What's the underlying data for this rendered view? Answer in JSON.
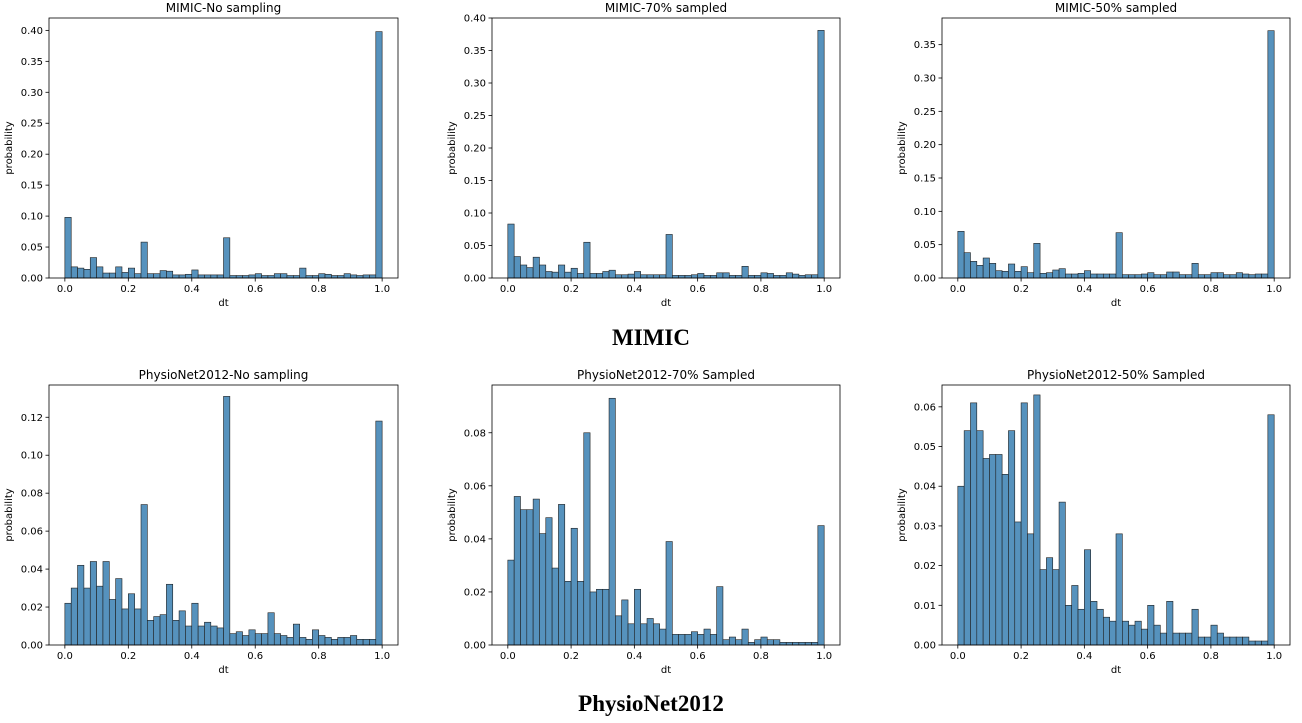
{
  "figure": {
    "section_labels": [
      "MIMIC",
      "PhysioNet2012"
    ]
  },
  "colors": {
    "bar_fill": "#5692bd",
    "bar_edge": "#1f1f1f"
  },
  "chart_data": [
    {
      "type": "bar",
      "title": "MIMIC-No sampling",
      "xlabel": "dt",
      "ylabel": "probability",
      "xlim": [
        -0.05,
        1.05
      ],
      "ylim": [
        0,
        0.42
      ],
      "xticks": [
        0.0,
        0.2,
        0.4,
        0.6,
        0.8,
        1.0
      ],
      "xtick_labels": [
        "0.0",
        "0.2",
        "0.4",
        "0.6",
        "0.8",
        "1.0"
      ],
      "yticks": [
        0.0,
        0.05,
        0.1,
        0.15,
        0.2,
        0.25,
        0.3,
        0.35,
        0.4
      ],
      "ytick_labels": [
        "0.00",
        "0.05",
        "0.10",
        "0.15",
        "0.20",
        "0.25",
        "0.30",
        "0.35",
        "0.40"
      ],
      "bin_width": 0.02,
      "values": [
        0.098,
        0.018,
        0.016,
        0.014,
        0.033,
        0.018,
        0.008,
        0.008,
        0.018,
        0.009,
        0.016,
        0.007,
        0.058,
        0.007,
        0.007,
        0.012,
        0.011,
        0.005,
        0.005,
        0.006,
        0.013,
        0.005,
        0.005,
        0.005,
        0.005,
        0.065,
        0.004,
        0.004,
        0.004,
        0.005,
        0.007,
        0.004,
        0.004,
        0.007,
        0.007,
        0.004,
        0.004,
        0.016,
        0.004,
        0.004,
        0.007,
        0.006,
        0.004,
        0.004,
        0.007,
        0.005,
        0.004,
        0.005,
        0.005,
        0.398
      ]
    },
    {
      "type": "bar",
      "title": "MIMIC-70% sampled",
      "xlabel": "dt",
      "ylabel": "probability",
      "xlim": [
        -0.05,
        1.05
      ],
      "ylim": [
        0,
        0.4
      ],
      "xticks": [
        0.0,
        0.2,
        0.4,
        0.6,
        0.8,
        1.0
      ],
      "xtick_labels": [
        "0.0",
        "0.2",
        "0.4",
        "0.6",
        "0.8",
        "1.0"
      ],
      "yticks": [
        0.0,
        0.05,
        0.1,
        0.15,
        0.2,
        0.25,
        0.3,
        0.35,
        0.4
      ],
      "ytick_labels": [
        "0.00",
        "0.05",
        "0.10",
        "0.15",
        "0.20",
        "0.25",
        "0.30",
        "0.35",
        "0.40"
      ],
      "bin_width": 0.02,
      "values": [
        0.083,
        0.033,
        0.02,
        0.016,
        0.032,
        0.02,
        0.01,
        0.009,
        0.02,
        0.009,
        0.015,
        0.007,
        0.055,
        0.007,
        0.007,
        0.01,
        0.012,
        0.005,
        0.005,
        0.006,
        0.01,
        0.005,
        0.005,
        0.005,
        0.005,
        0.067,
        0.004,
        0.004,
        0.004,
        0.005,
        0.007,
        0.004,
        0.004,
        0.008,
        0.008,
        0.004,
        0.004,
        0.018,
        0.004,
        0.004,
        0.008,
        0.007,
        0.004,
        0.004,
        0.008,
        0.006,
        0.004,
        0.005,
        0.005,
        0.381
      ]
    },
    {
      "type": "bar",
      "title": "MIMIC-50% sampled",
      "xlabel": "dt",
      "ylabel": "probability",
      "xlim": [
        -0.05,
        1.05
      ],
      "ylim": [
        0,
        0.39
      ],
      "xticks": [
        0.0,
        0.2,
        0.4,
        0.6,
        0.8,
        1.0
      ],
      "xtick_labels": [
        "0.0",
        "0.2",
        "0.4",
        "0.6",
        "0.8",
        "1.0"
      ],
      "yticks": [
        0.0,
        0.05,
        0.1,
        0.15,
        0.2,
        0.25,
        0.3,
        0.35
      ],
      "ytick_labels": [
        "0.00",
        "0.05",
        "0.10",
        "0.15",
        "0.20",
        "0.25",
        "0.30",
        "0.35"
      ],
      "bin_width": 0.02,
      "values": [
        0.07,
        0.038,
        0.025,
        0.019,
        0.03,
        0.022,
        0.011,
        0.01,
        0.021,
        0.01,
        0.017,
        0.008,
        0.052,
        0.007,
        0.008,
        0.012,
        0.014,
        0.006,
        0.006,
        0.007,
        0.011,
        0.006,
        0.006,
        0.006,
        0.006,
        0.068,
        0.005,
        0.005,
        0.005,
        0.006,
        0.008,
        0.005,
        0.005,
        0.009,
        0.009,
        0.005,
        0.005,
        0.022,
        0.005,
        0.005,
        0.008,
        0.008,
        0.005,
        0.005,
        0.008,
        0.006,
        0.005,
        0.006,
        0.006,
        0.371
      ]
    },
    {
      "type": "bar",
      "title": "PhysioNet2012-No sampling",
      "xlabel": "dt",
      "ylabel": "probability",
      "xlim": [
        -0.05,
        1.05
      ],
      "ylim": [
        0,
        0.137
      ],
      "xticks": [
        0.0,
        0.2,
        0.4,
        0.6,
        0.8,
        1.0
      ],
      "xtick_labels": [
        "0.0",
        "0.2",
        "0.4",
        "0.6",
        "0.8",
        "1.0"
      ],
      "yticks": [
        0.0,
        0.02,
        0.04,
        0.06,
        0.08,
        0.1,
        0.12
      ],
      "ytick_labels": [
        "0.00",
        "0.02",
        "0.04",
        "0.06",
        "0.08",
        "0.10",
        "0.12"
      ],
      "bin_width": 0.02,
      "values": [
        0.022,
        0.03,
        0.042,
        0.03,
        0.044,
        0.031,
        0.044,
        0.024,
        0.035,
        0.019,
        0.027,
        0.019,
        0.074,
        0.013,
        0.015,
        0.016,
        0.032,
        0.013,
        0.018,
        0.01,
        0.022,
        0.01,
        0.012,
        0.01,
        0.009,
        0.131,
        0.006,
        0.007,
        0.005,
        0.008,
        0.006,
        0.006,
        0.017,
        0.006,
        0.005,
        0.004,
        0.011,
        0.004,
        0.003,
        0.008,
        0.005,
        0.004,
        0.003,
        0.004,
        0.004,
        0.005,
        0.003,
        0.003,
        0.003,
        0.118
      ]
    },
    {
      "type": "bar",
      "title": "PhysioNet2012-70% Sampled",
      "xlabel": "dt",
      "ylabel": "probability",
      "xlim": [
        -0.05,
        1.05
      ],
      "ylim": [
        0,
        0.098
      ],
      "xticks": [
        0.0,
        0.2,
        0.4,
        0.6,
        0.8,
        1.0
      ],
      "xtick_labels": [
        "0.0",
        "0.2",
        "0.4",
        "0.6",
        "0.8",
        "1.0"
      ],
      "yticks": [
        0.0,
        0.02,
        0.04,
        0.06,
        0.08
      ],
      "ytick_labels": [
        "0.00",
        "0.02",
        "0.04",
        "0.06",
        "0.08"
      ],
      "bin_width": 0.02,
      "values": [
        0.032,
        0.056,
        0.051,
        0.051,
        0.055,
        0.042,
        0.048,
        0.029,
        0.053,
        0.024,
        0.044,
        0.024,
        0.08,
        0.02,
        0.021,
        0.021,
        0.093,
        0.011,
        0.017,
        0.008,
        0.021,
        0.008,
        0.01,
        0.008,
        0.006,
        0.039,
        0.004,
        0.004,
        0.004,
        0.005,
        0.004,
        0.006,
        0.004,
        0.022,
        0.002,
        0.003,
        0.002,
        0.006,
        0.001,
        0.002,
        0.003,
        0.002,
        0.002,
        0.001,
        0.001,
        0.001,
        0.001,
        0.001,
        0.001,
        0.045
      ]
    },
    {
      "type": "bar",
      "title": "PhysioNet2012-50% Sampled",
      "xlabel": "dt",
      "ylabel": "probability",
      "xlim": [
        -0.05,
        1.05
      ],
      "ylim": [
        0,
        0.0655
      ],
      "xticks": [
        0.0,
        0.2,
        0.4,
        0.6,
        0.8,
        1.0
      ],
      "xtick_labels": [
        "0.0",
        "0.2",
        "0.4",
        "0.6",
        "0.8",
        "1.0"
      ],
      "yticks": [
        0.0,
        0.01,
        0.02,
        0.03,
        0.04,
        0.05,
        0.06
      ],
      "ytick_labels": [
        "0.00",
        "0.01",
        "0.02",
        "0.03",
        "0.04",
        "0.05",
        "0.06"
      ],
      "bin_width": 0.02,
      "values": [
        0.04,
        0.054,
        0.061,
        0.054,
        0.047,
        0.048,
        0.048,
        0.043,
        0.054,
        0.031,
        0.061,
        0.028,
        0.063,
        0.019,
        0.022,
        0.019,
        0.036,
        0.01,
        0.015,
        0.009,
        0.024,
        0.011,
        0.009,
        0.007,
        0.006,
        0.028,
        0.006,
        0.005,
        0.006,
        0.004,
        0.01,
        0.005,
        0.003,
        0.011,
        0.003,
        0.003,
        0.003,
        0.009,
        0.002,
        0.002,
        0.005,
        0.003,
        0.002,
        0.002,
        0.002,
        0.002,
        0.001,
        0.001,
        0.001,
        0.058
      ]
    }
  ]
}
